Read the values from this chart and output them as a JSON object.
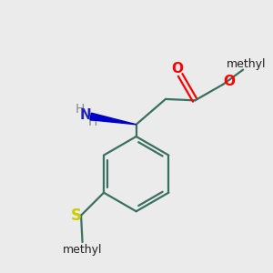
{
  "bg_color": "#ebebeb",
  "bond_color": "#3a7060",
  "bond_width": 1.6,
  "O_color": "#ff0000",
  "N_color": "#2222bb",
  "S_color": "#cccc00",
  "H_color": "#888888",
  "text_fontsize": 10,
  "methyl_label": "methyl",
  "xlim": [
    0,
    10
  ],
  "ylim": [
    0,
    10
  ]
}
